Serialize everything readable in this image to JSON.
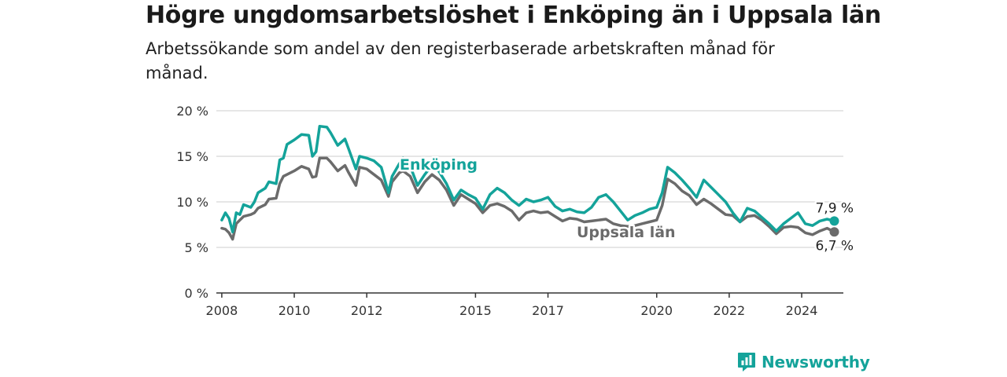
{
  "title": "Högre ungdomsarbetslöshet i Enköping än i Uppsala län",
  "subtitle": "Arbetssökande som andel av den registerbaserade arbetskraften månad för månad.",
  "brand": {
    "name": "Newsworthy",
    "icon": "newsworthy-logo-icon"
  },
  "colors": {
    "enkoping": "#14a39a",
    "uppsala": "#6b6b6b",
    "grid": "#dddddd",
    "axis": "#333333"
  },
  "chart_data": {
    "type": "line",
    "title": "Högre ungdomsarbetslöshet i Enköping än i Uppsala län",
    "xlabel": "",
    "ylabel": "",
    "xlim": [
      2008,
      2025.2
    ],
    "ylim": [
      0,
      20
    ],
    "x_ticks": [
      "2008",
      "2010",
      "2012",
      "2015",
      "2017",
      "2020",
      "2022",
      "2024"
    ],
    "y_ticks": [
      "0 %",
      "5 %",
      "10 %",
      "15 %",
      "20 %"
    ],
    "grid": "horizontal",
    "series": [
      {
        "name": "Enköping",
        "end_label": "7,9 %",
        "points": [
          [
            2008.0,
            8.0
          ],
          [
            2008.1,
            8.8
          ],
          [
            2008.2,
            8.2
          ],
          [
            2008.3,
            6.7
          ],
          [
            2008.4,
            8.8
          ],
          [
            2008.5,
            8.6
          ],
          [
            2008.6,
            9.7
          ],
          [
            2008.8,
            9.4
          ],
          [
            2008.9,
            10.0
          ],
          [
            2009.0,
            11.0
          ],
          [
            2009.2,
            11.5
          ],
          [
            2009.3,
            12.2
          ],
          [
            2009.5,
            12.0
          ],
          [
            2009.6,
            14.6
          ],
          [
            2009.7,
            14.8
          ],
          [
            2009.8,
            16.3
          ],
          [
            2010.0,
            16.8
          ],
          [
            2010.2,
            17.4
          ],
          [
            2010.4,
            17.3
          ],
          [
            2010.5,
            15.0
          ],
          [
            2010.6,
            15.5
          ],
          [
            2010.7,
            18.3
          ],
          [
            2010.9,
            18.2
          ],
          [
            2011.0,
            17.6
          ],
          [
            2011.2,
            16.2
          ],
          [
            2011.4,
            16.9
          ],
          [
            2011.5,
            15.8
          ],
          [
            2011.7,
            13.6
          ],
          [
            2011.8,
            15.0
          ],
          [
            2012.0,
            14.8
          ],
          [
            2012.2,
            14.5
          ],
          [
            2012.4,
            13.8
          ],
          [
            2012.6,
            11.0
          ],
          [
            2012.7,
            12.8
          ],
          [
            2012.9,
            14.2
          ],
          [
            2013.0,
            14.8
          ],
          [
            2013.2,
            13.9
          ],
          [
            2013.4,
            11.8
          ],
          [
            2013.6,
            13.0
          ],
          [
            2013.8,
            14.0
          ],
          [
            2014.0,
            13.3
          ],
          [
            2014.2,
            12.0
          ],
          [
            2014.4,
            10.2
          ],
          [
            2014.6,
            11.3
          ],
          [
            2014.8,
            10.8
          ],
          [
            2015.0,
            10.4
          ],
          [
            2015.2,
            9.2
          ],
          [
            2015.4,
            10.8
          ],
          [
            2015.6,
            11.5
          ],
          [
            2015.8,
            11.0
          ],
          [
            2016.0,
            10.2
          ],
          [
            2016.2,
            9.6
          ],
          [
            2016.4,
            10.3
          ],
          [
            2016.6,
            10.0
          ],
          [
            2016.8,
            10.2
          ],
          [
            2017.0,
            10.5
          ],
          [
            2017.2,
            9.5
          ],
          [
            2017.4,
            9.0
          ],
          [
            2017.6,
            9.2
          ],
          [
            2017.8,
            8.9
          ],
          [
            2018.0,
            8.8
          ],
          [
            2018.2,
            9.4
          ],
          [
            2018.4,
            10.5
          ],
          [
            2018.6,
            10.8
          ],
          [
            2018.8,
            10.0
          ],
          [
            2019.0,
            9.0
          ],
          [
            2019.2,
            8.0
          ],
          [
            2019.4,
            8.5
          ],
          [
            2019.6,
            8.8
          ],
          [
            2019.8,
            9.2
          ],
          [
            2020.0,
            9.4
          ],
          [
            2020.15,
            11.0
          ],
          [
            2020.3,
            13.8
          ],
          [
            2020.5,
            13.2
          ],
          [
            2020.7,
            12.4
          ],
          [
            2020.9,
            11.5
          ],
          [
            2021.1,
            10.5
          ],
          [
            2021.3,
            12.4
          ],
          [
            2021.5,
            11.6
          ],
          [
            2021.7,
            10.8
          ],
          [
            2021.9,
            10.0
          ],
          [
            2022.1,
            8.8
          ],
          [
            2022.3,
            7.8
          ],
          [
            2022.5,
            9.3
          ],
          [
            2022.7,
            9.0
          ],
          [
            2022.9,
            8.3
          ],
          [
            2023.1,
            7.6
          ],
          [
            2023.3,
            6.8
          ],
          [
            2023.5,
            7.6
          ],
          [
            2023.7,
            8.2
          ],
          [
            2023.9,
            8.8
          ],
          [
            2024.1,
            7.6
          ],
          [
            2024.3,
            7.4
          ],
          [
            2024.5,
            7.9
          ],
          [
            2024.7,
            8.1
          ],
          [
            2024.9,
            7.9
          ]
        ]
      },
      {
        "name": "Uppsala län",
        "end_label": "6,7 %",
        "points": [
          [
            2008.0,
            7.1
          ],
          [
            2008.1,
            7.0
          ],
          [
            2008.2,
            6.6
          ],
          [
            2008.3,
            5.9
          ],
          [
            2008.4,
            7.6
          ],
          [
            2008.5,
            8.0
          ],
          [
            2008.6,
            8.4
          ],
          [
            2008.8,
            8.6
          ],
          [
            2008.9,
            8.8
          ],
          [
            2009.0,
            9.3
          ],
          [
            2009.2,
            9.7
          ],
          [
            2009.3,
            10.3
          ],
          [
            2009.5,
            10.4
          ],
          [
            2009.6,
            12.0
          ],
          [
            2009.7,
            12.8
          ],
          [
            2009.8,
            13.0
          ],
          [
            2010.0,
            13.4
          ],
          [
            2010.2,
            13.9
          ],
          [
            2010.4,
            13.6
          ],
          [
            2010.5,
            12.7
          ],
          [
            2010.6,
            12.8
          ],
          [
            2010.7,
            14.8
          ],
          [
            2010.9,
            14.8
          ],
          [
            2011.0,
            14.4
          ],
          [
            2011.2,
            13.4
          ],
          [
            2011.4,
            14.0
          ],
          [
            2011.5,
            13.2
          ],
          [
            2011.7,
            11.8
          ],
          [
            2011.8,
            13.8
          ],
          [
            2012.0,
            13.6
          ],
          [
            2012.2,
            13.0
          ],
          [
            2012.4,
            12.4
          ],
          [
            2012.6,
            10.6
          ],
          [
            2012.7,
            12.2
          ],
          [
            2012.9,
            13.2
          ],
          [
            2013.0,
            13.4
          ],
          [
            2013.2,
            12.8
          ],
          [
            2013.4,
            11.0
          ],
          [
            2013.6,
            12.2
          ],
          [
            2013.8,
            13.0
          ],
          [
            2014.0,
            12.4
          ],
          [
            2014.2,
            11.3
          ],
          [
            2014.4,
            9.6
          ],
          [
            2014.6,
            10.8
          ],
          [
            2014.8,
            10.3
          ],
          [
            2015.0,
            9.8
          ],
          [
            2015.2,
            8.8
          ],
          [
            2015.4,
            9.6
          ],
          [
            2015.6,
            9.8
          ],
          [
            2015.8,
            9.5
          ],
          [
            2016.0,
            9.0
          ],
          [
            2016.2,
            8.0
          ],
          [
            2016.4,
            8.8
          ],
          [
            2016.6,
            9.0
          ],
          [
            2016.8,
            8.8
          ],
          [
            2017.0,
            8.9
          ],
          [
            2017.2,
            8.4
          ],
          [
            2017.4,
            7.9
          ],
          [
            2017.6,
            8.2
          ],
          [
            2017.8,
            8.1
          ],
          [
            2018.0,
            7.8
          ],
          [
            2018.2,
            7.9
          ],
          [
            2018.4,
            8.0
          ],
          [
            2018.6,
            8.1
          ],
          [
            2018.8,
            7.6
          ],
          [
            2019.0,
            7.4
          ],
          [
            2019.2,
            7.3
          ],
          [
            2019.4,
            7.4
          ],
          [
            2019.6,
            7.6
          ],
          [
            2019.8,
            7.8
          ],
          [
            2020.0,
            8.0
          ],
          [
            2020.15,
            9.6
          ],
          [
            2020.3,
            12.5
          ],
          [
            2020.5,
            12.0
          ],
          [
            2020.7,
            11.2
          ],
          [
            2020.9,
            10.7
          ],
          [
            2021.1,
            9.7
          ],
          [
            2021.3,
            10.3
          ],
          [
            2021.5,
            9.8
          ],
          [
            2021.7,
            9.2
          ],
          [
            2021.9,
            8.6
          ],
          [
            2022.1,
            8.5
          ],
          [
            2022.3,
            7.8
          ],
          [
            2022.5,
            8.4
          ],
          [
            2022.7,
            8.5
          ],
          [
            2022.9,
            8.0
          ],
          [
            2023.1,
            7.3
          ],
          [
            2023.3,
            6.5
          ],
          [
            2023.5,
            7.2
          ],
          [
            2023.7,
            7.3
          ],
          [
            2023.9,
            7.2
          ],
          [
            2024.1,
            6.6
          ],
          [
            2024.3,
            6.4
          ],
          [
            2024.5,
            6.8
          ],
          [
            2024.7,
            7.1
          ],
          [
            2024.9,
            6.7
          ]
        ]
      }
    ]
  }
}
